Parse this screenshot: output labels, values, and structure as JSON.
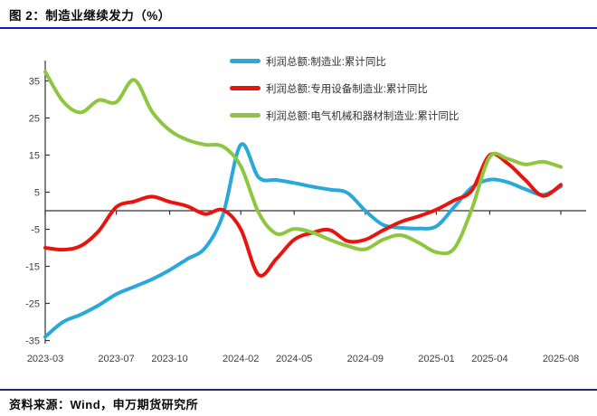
{
  "title": "图 2：制造业继续发力（%）",
  "source": "资料来源：Wind，申万期货研究所",
  "colors": {
    "title_rule": "#1313cb",
    "source_rule": "#252a6b",
    "axis": "#333333",
    "tick_label": "#404040",
    "blue": "#29a8dc",
    "red": "#e8150f",
    "green": "#8dc63f"
  },
  "chart_data": {
    "type": "line",
    "title": "制造业继续发力（%）",
    "grid": false,
    "legend_position": "top-center",
    "ylim": [
      -35,
      40
    ],
    "y_ticks": [
      35,
      25,
      15,
      5,
      -5,
      -15,
      -25,
      -35
    ],
    "x_labels": [
      "2023-03",
      "2023-07",
      "2023-10",
      "2024-02",
      "2024-05",
      "2024-09",
      "2025-01",
      "2025-04",
      "2025-08"
    ],
    "x_label_t": [
      0,
      4,
      7,
      11,
      14,
      18,
      22,
      25,
      29
    ],
    "months": [
      "2023-03",
      "2023-04",
      "2023-05",
      "2023-06",
      "2023-07",
      "2023-08",
      "2023-09",
      "2023-10",
      "2023-11",
      "2023-12",
      "2024-01",
      "2024-02",
      "2024-03",
      "2024-04",
      "2024-05",
      "2024-06",
      "2024-07",
      "2024-08",
      "2024-09",
      "2024-10",
      "2024-11",
      "2024-12",
      "2025-01",
      "2025-02",
      "2025-03",
      "2025-04",
      "2025-05",
      "2025-06",
      "2025-07",
      "2025-08"
    ],
    "series": [
      {
        "name": "利润总额:制造业:累计同比",
        "color": "#29a8dc",
        "values": [
          -34,
          -30,
          -28,
          -25.5,
          -22.5,
          -20.5,
          -18.5,
          -16,
          -13,
          -10,
          -1,
          17.8,
          9,
          8.3,
          7.5,
          6.5,
          5.7,
          4.8,
          0,
          -3.8,
          -4.6,
          -4.8,
          -4.2,
          1,
          6.3,
          8.4,
          7.7,
          5.8,
          4.3,
          6.5
        ]
      },
      {
        "name": "利润总额:专用设备制造业:累计同比",
        "color": "#e8150f",
        "values": [
          -10,
          -10.5,
          -9.5,
          -5.5,
          1,
          2.5,
          3.8,
          2.4,
          1.2,
          -0.9,
          0.2,
          -5,
          -17.3,
          -13,
          -7.8,
          -6,
          -5.2,
          -8.2,
          -7.8,
          -5.3,
          -3,
          -1.5,
          0.3,
          2.8,
          5.5,
          15,
          12.8,
          8.3,
          4,
          7
        ]
      },
      {
        "name": "利润总额:电气机械和器材制造业:累计同比",
        "color": "#8dc63f",
        "values": [
          37.5,
          29.5,
          26.5,
          29.8,
          29.3,
          35.3,
          26.8,
          21.7,
          19.1,
          17.8,
          17.3,
          12,
          -0.5,
          -6.2,
          -4.9,
          -5.8,
          -7.8,
          -9.5,
          -10.4,
          -7.8,
          -6.6,
          -8.6,
          -11.2,
          -10.2,
          0.5,
          14.5,
          14,
          12.5,
          13.2,
          11.8
        ]
      }
    ]
  }
}
